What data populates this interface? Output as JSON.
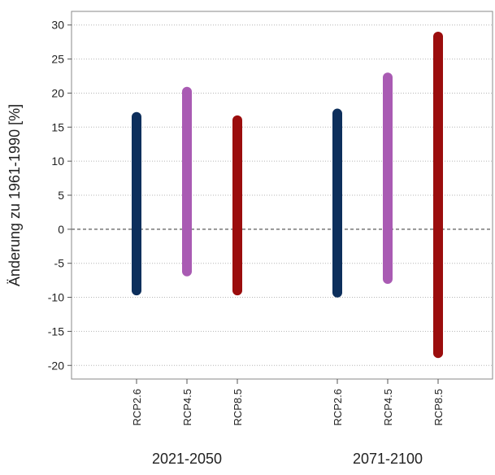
{
  "chart_data": {
    "type": "range-bar",
    "title": "",
    "xlabel": "",
    "ylabel": "Änderung zu 1961-1990 [%]",
    "ylim": [
      -22,
      32
    ],
    "yticks": [
      30,
      25,
      20,
      15,
      10,
      5,
      0,
      -5,
      -10,
      -15,
      -20
    ],
    "grid": "horizontal-dotted",
    "zero_line": "dashed",
    "groups": [
      {
        "label": "2021-2050",
        "bars": [
          {
            "name": "RCP2.6",
            "low": -9,
            "high": 16.5,
            "color": "#0d2f5c"
          },
          {
            "name": "RCP4.5",
            "low": -6.2,
            "high": 20.2,
            "color": "#a95bb3"
          },
          {
            "name": "RCP8.5",
            "low": -9,
            "high": 16,
            "color": "#9b0d0d"
          }
        ]
      },
      {
        "label": "2071-2100",
        "bars": [
          {
            "name": "RCP2.6",
            "low": -9.3,
            "high": 17,
            "color": "#0d2f5c"
          },
          {
            "name": "RCP4.5",
            "low": -7.3,
            "high": 22.3,
            "color": "#a95bb3"
          },
          {
            "name": "RCP8.5",
            "low": -18.2,
            "high": 28.3,
            "color": "#9b0d0d"
          }
        ]
      }
    ]
  }
}
